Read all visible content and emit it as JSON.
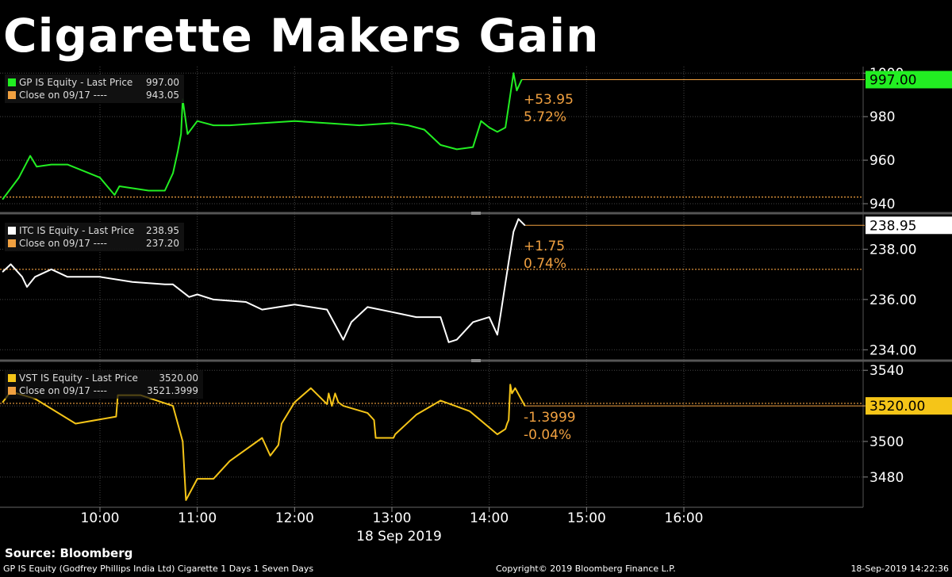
{
  "title": "Cigarette Makers Gain",
  "footer": {
    "source": "Source: Bloomberg",
    "description": "GP IS Equity (Godfrey Phillips India Ltd) Cigarette 1 Days 1 Seven Days",
    "copyright": "Copyright© 2019 Bloomberg Finance L.P.",
    "timestamp": "18-Sep-2019 14:22:36"
  },
  "x_axis": {
    "ticks": [
      "10:00",
      "11:00",
      "12:00",
      "13:00",
      "14:00",
      "15:00",
      "16:00"
    ],
    "date": "18 Sep 2019"
  },
  "colors": {
    "gp": "#22ee22",
    "itc": "#ffffff",
    "vst": "#f5c518",
    "close": "#f0a040",
    "grid": "#444444"
  },
  "chart_data": [
    {
      "type": "line",
      "name": "GP IS Equity",
      "legend": {
        "last_label": "GP IS Equity - Last Price",
        "last_value": "997.00",
        "close_label": "Close on 09/17 ----",
        "close_value": "943.05"
      },
      "last_price": 997.0,
      "last_price_label": "997.00",
      "prev_close": 943.05,
      "change": "+53.95",
      "change_pct": "5.72%",
      "yticks": [
        "940",
        "960",
        "980",
        "1000"
      ],
      "ylim": [
        936,
        1003
      ],
      "x": [
        "09:00",
        "09:10",
        "09:17",
        "09:21",
        "09:30",
        "09:40",
        "10:00",
        "10:09",
        "10:12",
        "10:30",
        "10:40",
        "10:45",
        "10:48",
        "10:50",
        "10:51",
        "10:54",
        "11:00",
        "11:10",
        "11:20",
        "11:40",
        "12:00",
        "12:20",
        "12:40",
        "13:00",
        "13:10",
        "13:20",
        "13:30",
        "13:40",
        "13:50",
        "13:55",
        "14:00",
        "14:05",
        "14:10",
        "14:12",
        "14:15",
        "14:17",
        "14:20"
      ],
      "values": [
        942,
        952,
        962,
        957,
        958,
        958,
        952,
        944,
        948,
        946,
        946,
        954,
        964,
        972,
        988,
        972,
        978,
        976,
        976,
        977,
        978,
        977,
        976,
        977,
        976,
        974,
        967,
        965,
        966,
        978,
        975,
        973,
        975,
        985,
        1000,
        992,
        997
      ]
    },
    {
      "type": "line",
      "name": "ITC IS Equity",
      "legend": {
        "last_label": "ITC IS Equity - Last Price",
        "last_value": "238.95",
        "close_label": "Close on 09/17 ----",
        "close_value": "237.20"
      },
      "last_price": 238.95,
      "last_price_label": "238.95",
      "prev_close": 237.2,
      "change": "+1.75",
      "change_pct": "0.74%",
      "yticks": [
        "234.00",
        "236.00",
        "238.00"
      ],
      "ylim": [
        233.6,
        239.4
      ],
      "x": [
        "09:00",
        "09:05",
        "09:12",
        "09:15",
        "09:20",
        "09:30",
        "09:40",
        "10:00",
        "10:20",
        "10:40",
        "10:45",
        "10:55",
        "11:00",
        "11:10",
        "11:30",
        "11:40",
        "12:00",
        "12:20",
        "12:30",
        "12:35",
        "12:45",
        "13:00",
        "13:15",
        "13:30",
        "13:35",
        "13:40",
        "13:50",
        "14:00",
        "14:05",
        "14:07",
        "14:12",
        "14:15",
        "14:18",
        "14:22"
      ],
      "values": [
        237.1,
        237.4,
        236.9,
        236.5,
        236.9,
        237.2,
        236.9,
        236.9,
        236.7,
        236.6,
        236.6,
        236.1,
        236.2,
        236.0,
        235.9,
        235.6,
        235.8,
        235.6,
        234.4,
        235.1,
        235.7,
        235.5,
        235.3,
        235.3,
        234.3,
        234.4,
        235.1,
        235.3,
        234.6,
        235.4,
        237.5,
        238.7,
        239.2,
        238.95
      ]
    },
    {
      "type": "line",
      "name": "VST IS Equity",
      "legend": {
        "last_label": "VST IS Equity - Last Price",
        "last_value": "3520.00",
        "close_label": "Close on 09/17 ----",
        "close_value": "3521.3999"
      },
      "last_price": 3520.0,
      "last_price_label": "3520.00",
      "prev_close": 3521.3999,
      "change": "-1.3999",
      "change_pct": "-0.04%",
      "yticks": [
        "3480",
        "3500",
        "3520",
        "3540"
      ],
      "ylim": [
        3463,
        3545
      ],
      "x": [
        "09:00",
        "09:05",
        "09:20",
        "09:45",
        "10:10",
        "10:11",
        "10:25",
        "10:45",
        "10:51",
        "10:53",
        "11:00",
        "11:10",
        "11:20",
        "11:40",
        "11:45",
        "11:50",
        "11:52",
        "12:00",
        "12:10",
        "12:20",
        "12:21",
        "12:23",
        "12:25",
        "12:27",
        "12:30",
        "12:45",
        "12:49",
        "12:50",
        "13:01",
        "13:02",
        "13:15",
        "13:30",
        "13:48",
        "14:05",
        "14:10",
        "14:11",
        "14:12",
        "14:13",
        "14:14",
        "14:16",
        "14:22"
      ],
      "values": [
        3522,
        3528,
        3524,
        3510,
        3514,
        3526,
        3526,
        3520,
        3500,
        3467,
        3479,
        3479,
        3489,
        3502,
        3492,
        3498,
        3510,
        3522,
        3530,
        3521,
        3527,
        3520,
        3527,
        3522,
        3520,
        3516,
        3512,
        3502,
        3502,
        3504,
        3515,
        3523,
        3517,
        3504,
        3507,
        3510,
        3512,
        3532,
        3527,
        3530,
        3520
      ]
    }
  ]
}
